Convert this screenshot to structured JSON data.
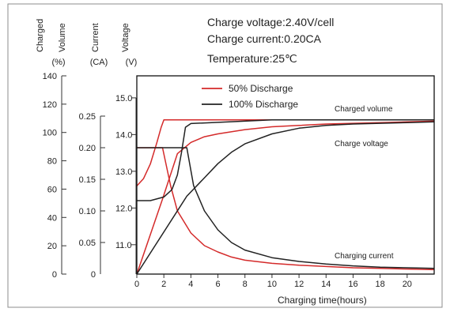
{
  "chart_data": {
    "type": "line",
    "xlabel": "Charging time(hours)",
    "x_ticks": [
      0,
      2,
      4,
      6,
      8,
      10,
      12,
      14,
      16,
      18,
      20
    ],
    "xlim": [
      0,
      22
    ],
    "axes": {
      "charged_volume": {
        "header": "Charged\nVolume",
        "unit": "(%)",
        "ticks": [
          0,
          20,
          40,
          60,
          80,
          100,
          120,
          140
        ],
        "range": [
          0,
          140
        ]
      },
      "current": {
        "header": "Current",
        "unit": "(CA)",
        "ticks": [
          0,
          0.05,
          0.1,
          0.15,
          0.2,
          0.25
        ],
        "tick_labels": [
          "0",
          "0.05",
          "0.10",
          "0.15",
          "0.20",
          "0.25"
        ],
        "range": [
          0,
          0.3
        ]
      },
      "voltage": {
        "header": "Voltage",
        "unit": "(V)",
        "ticks": [
          11.0,
          12.0,
          13.0,
          14.0,
          15.0
        ],
        "tick_labels": [
          "11.0",
          "12.0",
          "13.0",
          "14.0",
          "15.0"
        ],
        "range": [
          10.2,
          15.6
        ]
      }
    },
    "conditions": {
      "voltage": "Charge voltage:2.40V/cell",
      "current": "Charge current:0.20CA",
      "temperature": "Temperature:25℃"
    },
    "legend": {
      "position": "top-left",
      "items": [
        {
          "name": "50% Discharge",
          "color": "#d42a2a"
        },
        {
          "name": "100% Discharge",
          "color": "#222222"
        }
      ]
    },
    "annotations": {
      "charged_volume": "Charged volume",
      "charge_voltage": "Charge voltage",
      "charging_current": "Charging current"
    },
    "series": [
      {
        "group": "50% Discharge",
        "quantity": "voltage",
        "axis": "voltage",
        "color": "#d42a2a",
        "x": [
          0,
          0.5,
          1.0,
          1.5,
          1.8,
          2,
          4,
          7,
          10,
          14,
          18,
          22
        ],
        "y": [
          12.6,
          12.8,
          13.2,
          13.8,
          14.2,
          14.4,
          14.4,
          14.4,
          14.4,
          14.4,
          14.4,
          14.4
        ]
      },
      {
        "group": "50% Discharge",
        "quantity": "current",
        "axis": "current",
        "color": "#d42a2a",
        "x": [
          0,
          1.9,
          2.5,
          3,
          4,
          5,
          6,
          7,
          8,
          10,
          12,
          14,
          16,
          18,
          20,
          22
        ],
        "y": [
          0.2,
          0.2,
          0.14,
          0.1,
          0.065,
          0.045,
          0.035,
          0.027,
          0.022,
          0.017,
          0.014,
          0.012,
          0.01,
          0.009,
          0.008,
          0.007
        ]
      },
      {
        "group": "50% Discharge",
        "quantity": "charged_volume",
        "axis": "charged_volume",
        "color": "#d42a2a",
        "x": [
          0,
          1.9,
          3,
          4,
          5,
          6,
          8,
          10,
          12,
          14,
          16,
          18,
          20,
          22
        ],
        "y": [
          0,
          53,
          85,
          93,
          97,
          99,
          102,
          104,
          105,
          106,
          106.5,
          107,
          107.5,
          108
        ]
      },
      {
        "group": "100% Discharge",
        "quantity": "voltage",
        "axis": "voltage",
        "color": "#222222",
        "x": [
          0,
          1,
          2,
          2.6,
          3,
          3.3,
          3.6,
          4,
          7,
          10,
          14,
          18,
          22
        ],
        "y": [
          12.2,
          12.2,
          12.3,
          12.5,
          12.9,
          13.5,
          14.2,
          14.3,
          14.35,
          14.4,
          14.4,
          14.4,
          14.4
        ]
      },
      {
        "group": "100% Discharge",
        "quantity": "current",
        "axis": "current",
        "color": "#222222",
        "x": [
          0,
          3.7,
          4.2,
          5,
          6,
          7,
          8,
          10,
          12,
          14,
          16,
          18,
          20,
          22
        ],
        "y": [
          0.2,
          0.2,
          0.14,
          0.1,
          0.07,
          0.05,
          0.038,
          0.026,
          0.02,
          0.016,
          0.013,
          0.011,
          0.01,
          0.009
        ]
      },
      {
        "group": "100% Discharge",
        "quantity": "charged_volume",
        "axis": "charged_volume",
        "color": "#222222",
        "x": [
          0,
          3.7,
          5,
          6,
          7,
          8,
          10,
          12,
          14,
          16,
          18,
          20,
          22
        ],
        "y": [
          0,
          55,
          68,
          78,
          86,
          92,
          99,
          103,
          105,
          106,
          106.5,
          107,
          107.5
        ]
      }
    ]
  }
}
